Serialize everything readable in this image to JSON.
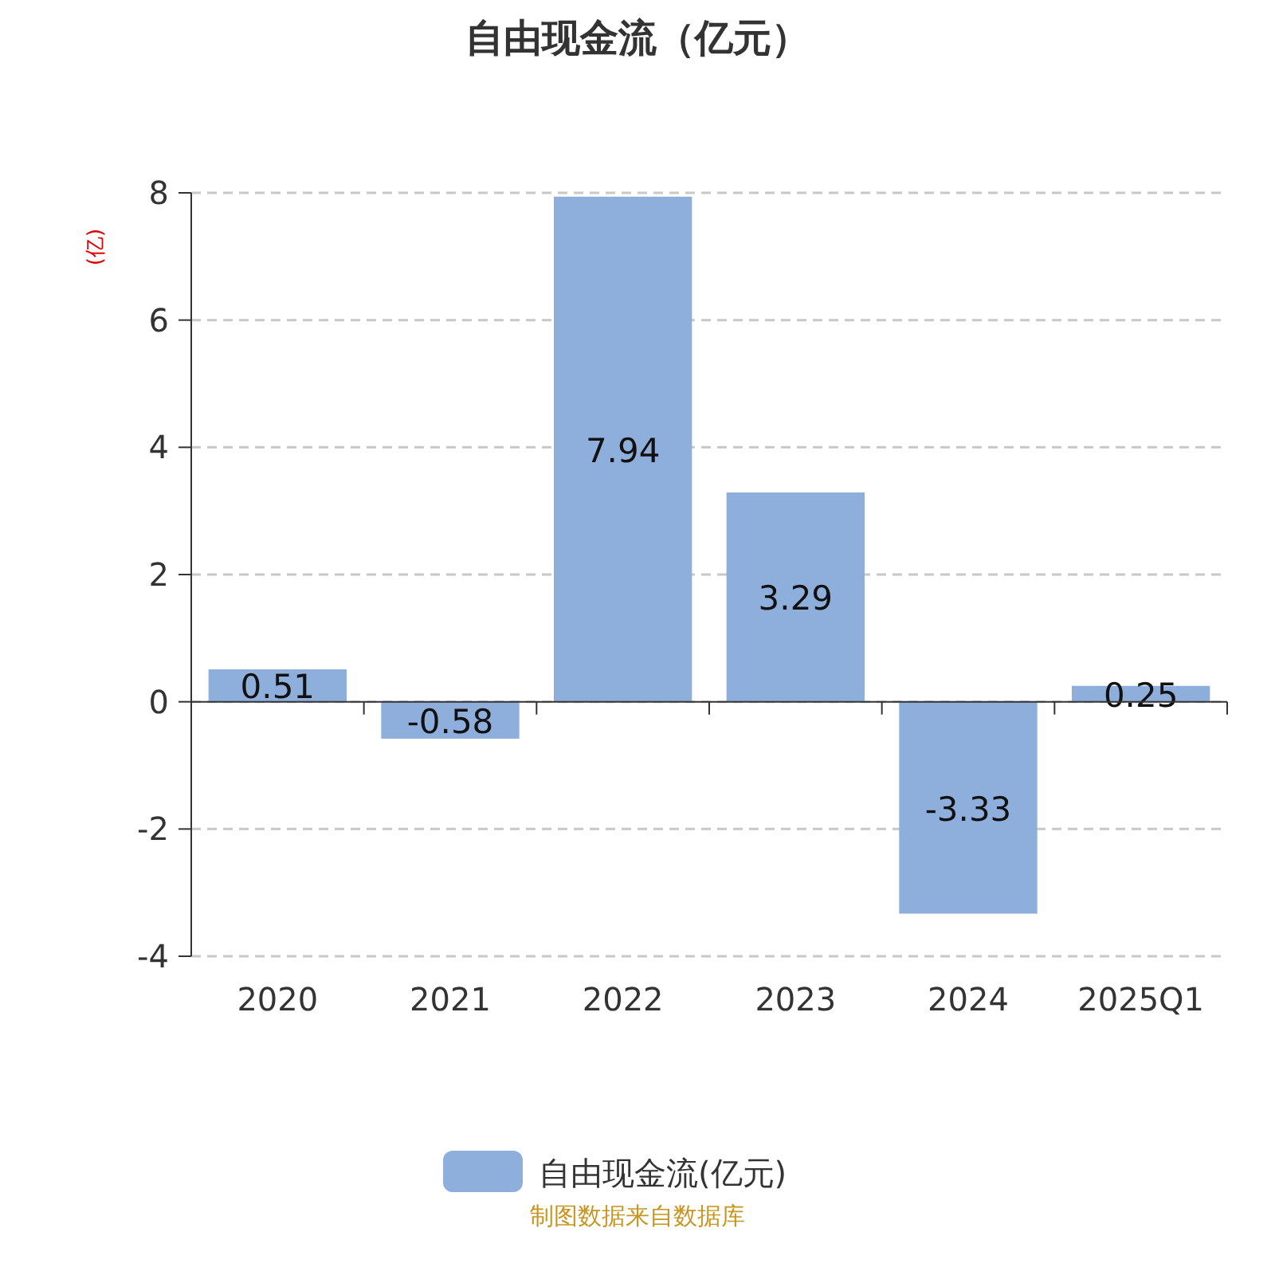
{
  "chart_data": {
    "type": "bar",
    "title": "自由现金流（亿元）",
    "ylabel": "(亿)",
    "categories": [
      "2020",
      "2021",
      "2022",
      "2023",
      "2024",
      "2025Q1"
    ],
    "series": [
      {
        "name": "自由现金流(亿元)",
        "color": "#8eaedb",
        "values": [
          0.51,
          -0.58,
          7.94,
          3.29,
          -3.33,
          0.25
        ]
      }
    ],
    "ylim": [
      -4,
      8
    ],
    "yticks": [
      -4,
      -2,
      0,
      2,
      4,
      6,
      8
    ],
    "grid": "y",
    "legend": "bottom",
    "data_labels": true,
    "annotations": [
      "制图数据来自数据库"
    ]
  }
}
